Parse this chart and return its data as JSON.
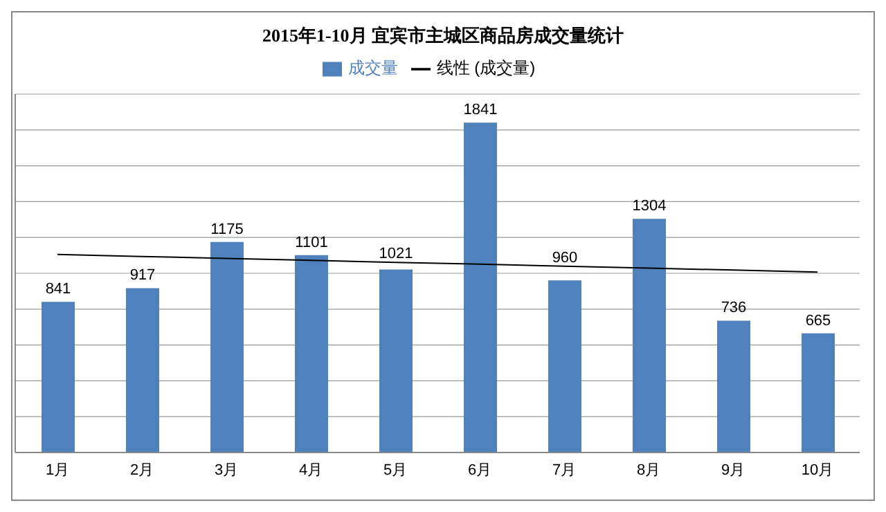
{
  "chart_data": {
    "type": "bar",
    "title": "2015年1-10月 宜宾市主城区商品房成交量统计",
    "categories": [
      "1月",
      "2月",
      "3月",
      "4月",
      "5月",
      "6月",
      "7月",
      "8月",
      "9月",
      "10月"
    ],
    "series": [
      {
        "name": "成交量",
        "color": "#4f81bd",
        "values": [
          841,
          917,
          1175,
          1101,
          1021,
          1841,
          960,
          1304,
          736,
          665
        ],
        "value_labels": [
          "841",
          "917",
          "1175",
          "1101",
          "1021",
          "1841",
          "960",
          "1304",
          "736",
          "665"
        ]
      },
      {
        "name": "线性 (成交量)",
        "type": "line",
        "color": "#000000",
        "values": [
          1105,
          1094,
          1083,
          1072,
          1061,
          1051,
          1040,
          1029,
          1018,
          1007
        ]
      }
    ],
    "ylim": [
      0,
      2000
    ],
    "yticks": [
      {
        "value": 0,
        "label": null
      },
      {
        "value": 200,
        "label": null
      },
      {
        "value": 400,
        "label": null
      },
      {
        "value": 600,
        "label": null
      },
      {
        "value": 800,
        "label": null
      },
      {
        "value": 1000,
        "label": null
      },
      {
        "value": 1200,
        "label": null
      },
      {
        "value": 1400,
        "label": null
      },
      {
        "value": 1600,
        "label": null
      },
      {
        "value": 1800,
        "label": null
      },
      {
        "value": 2000,
        "label": null
      }
    ],
    "grid": "y",
    "legend": "top",
    "tick_labels": "x",
    "marker": "none"
  }
}
